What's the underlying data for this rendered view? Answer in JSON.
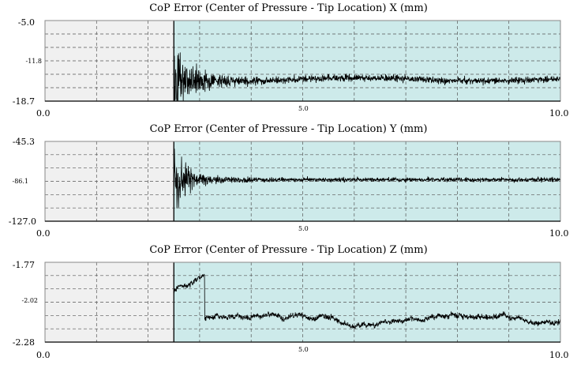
{
  "charts": [
    {
      "chart_data": {
        "type": "line",
        "title": "CoP Error (Center of Pressure - Tip Location) X (mm)",
        "xlim": [
          0.0,
          10.0
        ],
        "ylim": [
          -18.7,
          -5.0
        ],
        "y_ticks": [
          "-5.0",
          "-11.8",
          "-18.7"
        ],
        "x_ticks": [
          "0.0",
          "5.0",
          "10.0"
        ],
        "grid": true,
        "active_start_x": 2.5,
        "series": [
          {
            "values": "generated noisy trace",
            "color": "#000000"
          }
        ],
        "colors": {
          "inactive_bg": "#f0f0f0",
          "active_bg": "#cdeaea"
        }
      }
    },
    {
      "chart_data": {
        "type": "line",
        "title": "CoP Error (Center of Pressure - Tip Location) Y (mm)",
        "xlim": [
          0.0,
          10.0
        ],
        "ylim": [
          -127.0,
          -45.3
        ],
        "y_ticks": [
          "-45.3",
          "-86.1",
          "-127.0"
        ],
        "x_ticks": [
          "0.0",
          "5.0",
          "10.0"
        ],
        "grid": true,
        "active_start_x": 2.5,
        "series": [
          {
            "values": "generated noisy trace",
            "color": "#000000"
          }
        ],
        "colors": {
          "inactive_bg": "#f0f0f0",
          "active_bg": "#cdeaea"
        }
      }
    },
    {
      "chart_data": {
        "type": "line",
        "title": "CoP Error (Center of Pressure - Tip Location) Z (mm)",
        "xlim": [
          0.0,
          10.0
        ],
        "ylim": [
          -2.28,
          -1.77
        ],
        "y_ticks": [
          "-1.77",
          "-2.02",
          "-2.28"
        ],
        "x_ticks": [
          "0.0",
          "5.0",
          "10.0"
        ],
        "grid": true,
        "active_start_x": 2.5,
        "series": [
          {
            "values": "generated noisy trace",
            "color": "#000000"
          }
        ],
        "colors": {
          "inactive_bg": "#f0f0f0",
          "active_bg": "#cdeaea"
        }
      }
    }
  ]
}
